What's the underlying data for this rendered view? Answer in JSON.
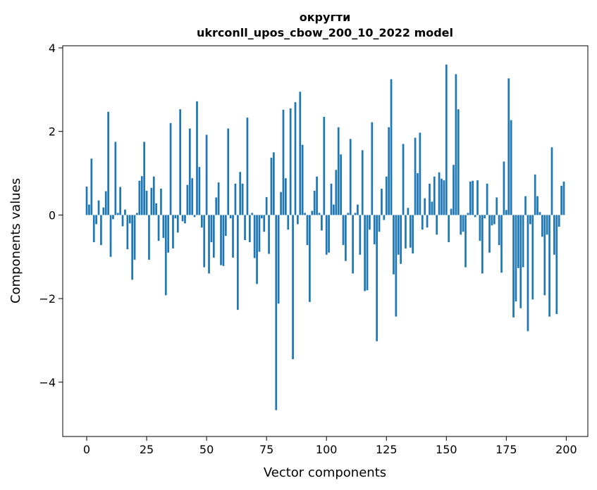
{
  "chart_data": {
    "type": "bar",
    "title": "округти",
    "subtitle": "ukrconll_upos_cbow_200_10_2022 model",
    "xlabel": "Vector components",
    "ylabel": "Components values",
    "xlim": [
      -10,
      209
    ],
    "ylim": [
      -5.3,
      4.05
    ],
    "xticks": [
      0,
      25,
      50,
      75,
      100,
      125,
      150,
      175,
      200
    ],
    "xtick_labels": [
      "0",
      "25",
      "50",
      "75",
      "100",
      "125",
      "150",
      "175",
      "200"
    ],
    "yticks": [
      4,
      2,
      0,
      -2,
      -4
    ],
    "ytick_labels": [
      "4",
      "2",
      "0",
      "−2",
      "−4"
    ],
    "grid": false,
    "bar_color": "#1f77b4",
    "x": [
      0,
      1,
      2,
      3,
      4,
      5,
      6,
      7,
      8,
      9,
      10,
      11,
      12,
      13,
      14,
      15,
      16,
      17,
      18,
      19,
      20,
      21,
      22,
      23,
      24,
      25,
      26,
      27,
      28,
      29,
      30,
      31,
      32,
      33,
      34,
      35,
      36,
      37,
      38,
      39,
      40,
      41,
      42,
      43,
      44,
      45,
      46,
      47,
      48,
      49,
      50,
      51,
      52,
      53,
      54,
      55,
      56,
      57,
      58,
      59,
      60,
      61,
      62,
      63,
      64,
      65,
      66,
      67,
      68,
      69,
      70,
      71,
      72,
      73,
      74,
      75,
      76,
      77,
      78,
      79,
      80,
      81,
      82,
      83,
      84,
      85,
      86,
      87,
      88,
      89,
      90,
      91,
      92,
      93,
      94,
      95,
      96,
      97,
      98,
      99,
      100,
      101,
      102,
      103,
      104,
      105,
      106,
      107,
      108,
      109,
      110,
      111,
      112,
      113,
      114,
      115,
      116,
      117,
      118,
      119,
      120,
      121,
      122,
      123,
      124,
      125,
      126,
      127,
      128,
      129,
      130,
      131,
      132,
      133,
      134,
      135,
      136,
      137,
      138,
      139,
      140,
      141,
      142,
      143,
      144,
      145,
      146,
      147,
      148,
      149,
      150,
      151,
      152,
      153,
      154,
      155,
      156,
      157,
      158,
      159,
      160,
      161,
      162,
      163,
      164,
      165,
      166,
      167,
      168,
      169,
      170,
      171,
      172,
      173,
      174,
      175,
      176,
      177,
      178,
      179,
      180,
      181,
      182,
      183,
      184,
      185,
      186,
      187,
      188,
      189,
      190,
      191,
      192,
      193,
      194,
      195,
      196,
      197,
      198,
      199
    ],
    "values": [
      0.68,
      0.25,
      1.35,
      -0.65,
      -0.22,
      0.35,
      -0.72,
      0.18,
      0.57,
      2.47,
      -1.0,
      -0.1,
      1.75,
      0.05,
      0.67,
      -0.27,
      0.13,
      -0.82,
      -0.2,
      -1.55,
      -1.07,
      0.05,
      0.82,
      0.93,
      1.75,
      0.58,
      -1.07,
      0.65,
      0.92,
      0.28,
      -0.62,
      0.63,
      -0.55,
      -1.92,
      -0.9,
      2.2,
      -0.8,
      -0.08,
      -0.42,
      2.53,
      -0.15,
      -0.2,
      0.72,
      2.07,
      0.88,
      -0.05,
      2.72,
      1.15,
      -0.3,
      -1.25,
      1.92,
      -1.4,
      -0.65,
      -1.02,
      0.42,
      0.78,
      -1.2,
      -1.22,
      -0.5,
      2.07,
      -0.08,
      -1.02,
      0.75,
      -2.27,
      1.03,
      0.75,
      -0.6,
      2.33,
      -0.65,
      0.05,
      -1.03,
      -1.65,
      -0.88,
      -0.08,
      -0.4,
      0.43,
      -0.93,
      1.37,
      1.5,
      -4.67,
      -2.12,
      0.55,
      2.52,
      0.88,
      -0.35,
      2.55,
      -3.45,
      2.7,
      -0.22,
      2.95,
      1.68,
      0.05,
      -0.72,
      -2.08,
      0.1,
      0.58,
      0.92,
      0.05,
      -0.37,
      2.35,
      -0.95,
      -0.9,
      0.75,
      0.25,
      1.08,
      2.1,
      1.45,
      -0.72,
      -1.1,
      0.05,
      1.82,
      -1.4,
      0.05,
      0.25,
      -0.95,
      1.55,
      -1.82,
      -1.8,
      -0.35,
      2.22,
      -0.7,
      -3.02,
      -0.4,
      0.63,
      -0.12,
      0.92,
      2.1,
      3.25,
      -1.42,
      -2.43,
      -0.95,
      -1.17,
      1.7,
      -0.8,
      0.17,
      -0.78,
      -0.92,
      1.85,
      1.0,
      1.97,
      -0.35,
      0.4,
      -0.3,
      0.75,
      0.32,
      0.92,
      -0.47,
      1.02,
      0.87,
      0.83,
      3.6,
      -0.65,
      0.15,
      1.2,
      3.37,
      2.53,
      -0.47,
      -0.4,
      -1.25,
      0.05,
      0.8,
      0.82,
      -0.05,
      0.83,
      -0.62,
      -1.4,
      -0.08,
      0.75,
      -0.9,
      -0.25,
      -0.22,
      0.42,
      -0.72,
      -1.38,
      1.28,
      0.12,
      3.27,
      2.27,
      -2.45,
      -2.07,
      -1.27,
      -2.23,
      -1.25,
      0.45,
      -2.78,
      -0.22,
      -2.02,
      0.97,
      0.45,
      0.07,
      -0.52,
      -1.92,
      -0.47,
      -2.43,
      1.62,
      -0.95,
      -2.37,
      -0.28,
      0.7,
      0.8
    ]
  }
}
